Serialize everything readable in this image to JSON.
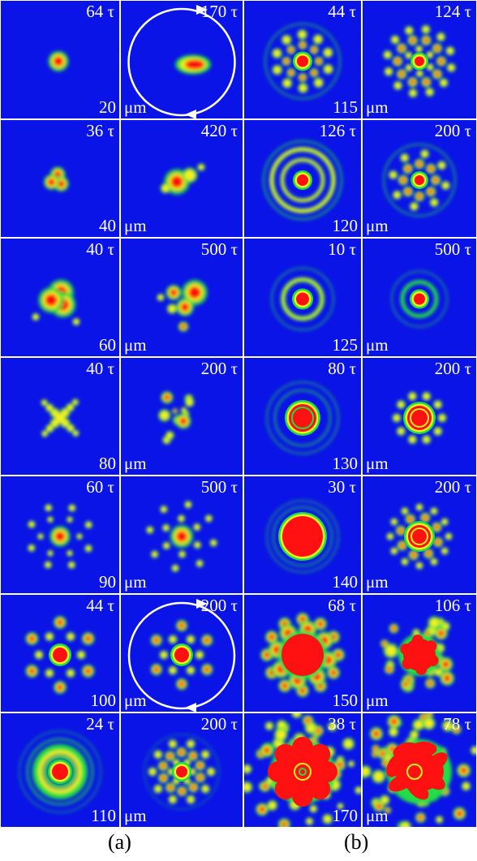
{
  "column_captions": [
    "(a)",
    "(b)"
  ],
  "unit": "μm",
  "time_unit": "τ",
  "rows": [
    {
      "a_size": "20",
      "b_size": "115",
      "times": [
        "64 τ",
        "170 τ",
        "44 τ",
        "124 τ"
      ],
      "patterns": [
        "blob",
        "crescent",
        "ring-spots",
        "spots-lattice"
      ],
      "rotation_arrow": "panel-2"
    },
    {
      "a_size": "40",
      "b_size": "120",
      "times": [
        "36 τ",
        "420 τ",
        "126 τ",
        "200 τ"
      ],
      "patterns": [
        "tri-blob",
        "dipole",
        "rings",
        "spots-ring"
      ]
    },
    {
      "a_size": "60",
      "b_size": "125",
      "times": [
        "40 τ",
        "500 τ",
        "10 τ",
        "500 τ"
      ],
      "patterns": [
        "tri-lobe",
        "fragments",
        "rings-small",
        "rings-small2"
      ]
    },
    {
      "a_size": "80",
      "b_size": "130",
      "times": [
        "40 τ",
        "200 τ",
        "80 τ",
        "200 τ"
      ],
      "patterns": [
        "cross",
        "scattered",
        "rings-thick",
        "polygon-ring"
      ]
    },
    {
      "a_size": "90",
      "b_size": "140",
      "times": [
        "60 τ",
        "500 τ",
        "30 τ",
        "200 τ"
      ],
      "patterns": [
        "star-spots",
        "star-spots-2",
        "big-disk",
        "polygon-halo"
      ]
    },
    {
      "a_size": "100",
      "b_size": "150",
      "times": [
        "44 τ",
        "200 τ",
        "68 τ",
        "106 τ"
      ],
      "patterns": [
        "hex-spots",
        "hex-spots-2",
        "large-blob",
        "large-blob-2"
      ],
      "rotation_arrow": "panel-2"
    },
    {
      "a_size": "110",
      "b_size": "170",
      "times": [
        "24 τ",
        "200 τ",
        "38 τ",
        "78 τ"
      ],
      "patterns": [
        "ring-target",
        "lattice",
        "chaotic",
        "chaotic-2"
      ]
    }
  ],
  "colors": {
    "background": "#0a14e6",
    "green": "#22dd44",
    "yellow": "#f2f21a",
    "red": "#ff1111",
    "divider": "#ffffff"
  }
}
